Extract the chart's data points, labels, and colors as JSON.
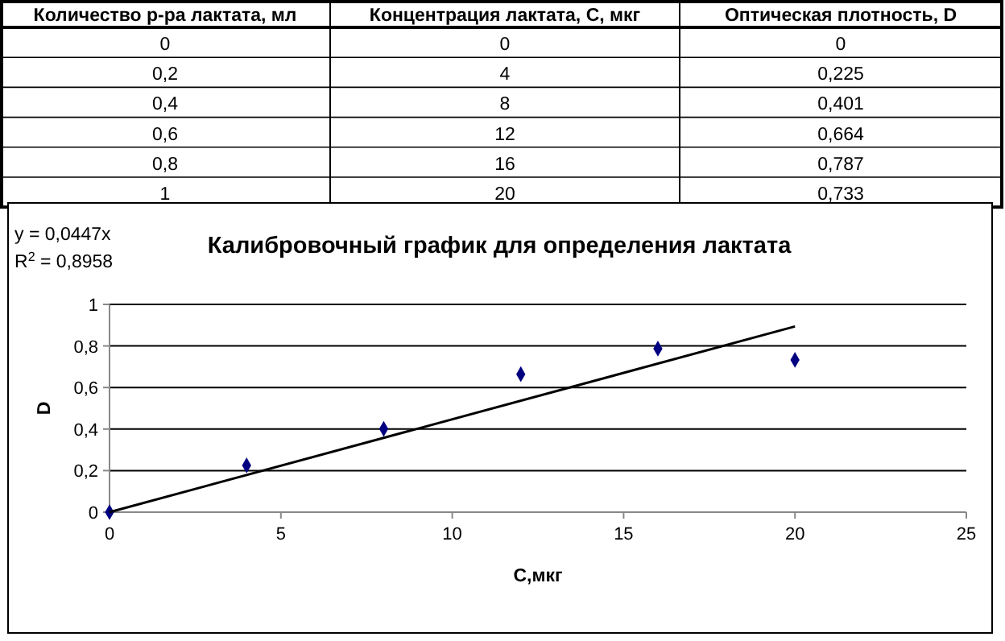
{
  "chart_data": {
    "type": "scatter",
    "title": "Калибровочный график для определения лактата",
    "xlabel": "С,мкг",
    "ylabel": "D",
    "annotations": [
      "y = 0,0447x",
      "R$^{2}$ = 0,8958",
      "Количество р-ра лактата, мл",
      "Концентрация лактата, С, мкг",
      "Оптическая плотность, D",
      "0",
      "0",
      "0",
      "0,2",
      "4",
      "0,225",
      "0,4",
      "8",
      "0,401",
      "0,6",
      "12",
      "0,664",
      "0,8",
      "16",
      "0,787",
      "1",
      "20",
      "0,733"
    ],
    "xlim": [
      0,
      25
    ],
    "xticks": [
      0,
      5,
      10,
      15,
      20,
      25
    ],
    "ylim": [
      0,
      1
    ],
    "yticks": [
      0,
      {
        "value": 0.2,
        "label": "0,2"
      },
      {
        "value": 0.4,
        "label": "0,4"
      },
      {
        "value": 0.6,
        "label": "0,6"
      },
      {
        "value": 0.8,
        "label": "0,8"
      },
      1
    ],
    "grid": "y",
    "marker": "diamond",
    "series": [
      {
        "color": "#000080",
        "x": [
          0,
          4,
          8,
          12,
          16,
          20
        ],
        "values": [
          0,
          0.225,
          0.401,
          0.664,
          0.787,
          0.733
        ]
      },
      {
        "type": "line",
        "color": "#000000",
        "line_style": "solid",
        "marker": "none",
        "x": [
          0,
          20
        ],
        "values": [
          0,
          0.894
        ]
      }
    ]
  }
}
